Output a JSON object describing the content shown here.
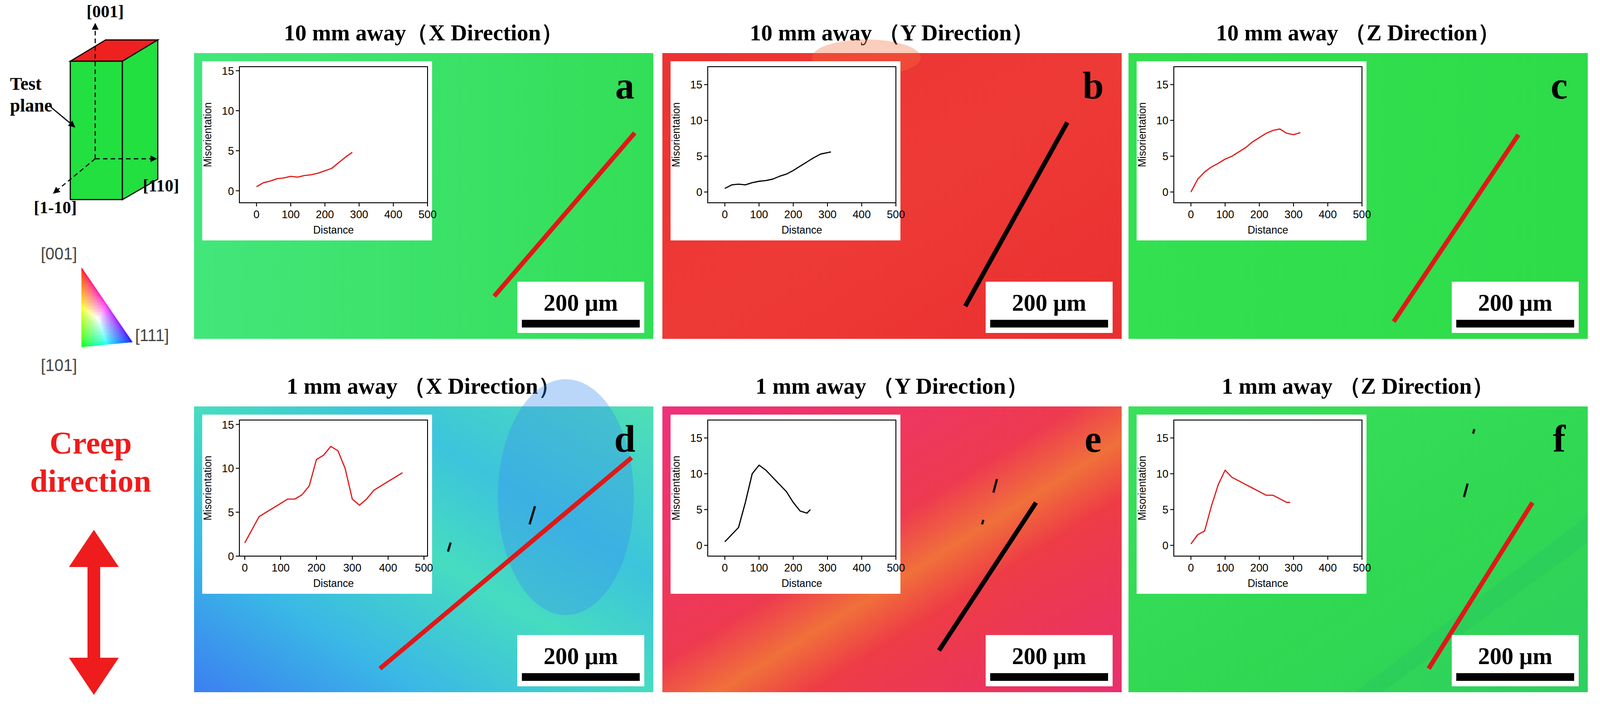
{
  "figure": {
    "orientation_diagram": {
      "axes": [
        "[001]",
        "[1-10]",
        "[110]"
      ],
      "test_plane": "Test plane"
    },
    "ipf_legend": {
      "corners": [
        "[001]",
        "[101]",
        "[111]"
      ]
    },
    "creep_label": "Creep direction"
  },
  "panels": [
    {
      "title": "10 mm away（X Direction）",
      "letter": "a",
      "scale_bar": "200 μm"
    },
    {
      "title": "10 mm away （Y Direction）",
      "letter": "b",
      "scale_bar": "200 μm"
    },
    {
      "title": "10 mm away （Z Direction）",
      "letter": "c",
      "scale_bar": "200 μm"
    },
    {
      "title": "1 mm away （X Direction）",
      "letter": "d",
      "scale_bar": "200 μm"
    },
    {
      "title": "1 mm away （Y Direction）",
      "letter": "e",
      "scale_bar": "200 μm"
    },
    {
      "title": "1 mm away （Z Direction）",
      "letter": "f",
      "scale_bar": "200 μm"
    }
  ],
  "chart_data": [
    {
      "type": "line",
      "xlabel": "Distance",
      "ylabel": "Misorientation",
      "color": "#e01818",
      "x": [
        0,
        20,
        40,
        60,
        80,
        100,
        120,
        140,
        160,
        180,
        200,
        220,
        240,
        260,
        280
      ],
      "values": [
        0.5,
        1.0,
        1.2,
        1.5,
        1.6,
        1.8,
        1.7,
        1.9,
        2.0,
        2.2,
        2.5,
        2.8,
        3.5,
        4.2,
        4.8
      ],
      "xlim": [
        -50,
        500
      ],
      "ylim": [
        -1.5,
        15.5
      ],
      "xticks": [
        0,
        100,
        200,
        300,
        400,
        500
      ],
      "yticks": [
        0,
        5,
        10,
        15
      ]
    },
    {
      "type": "line",
      "xlabel": "Distance",
      "ylabel": "Misorientation",
      "color": "#000000",
      "x": [
        0,
        20,
        40,
        60,
        80,
        100,
        120,
        140,
        160,
        180,
        200,
        220,
        240,
        260,
        280,
        300,
        310
      ],
      "values": [
        0.5,
        1.0,
        1.1,
        1.0,
        1.3,
        1.5,
        1.6,
        1.8,
        2.2,
        2.5,
        3.0,
        3.6,
        4.2,
        4.8,
        5.3,
        5.5,
        5.6
      ],
      "xlim": [
        -50,
        500
      ],
      "ylim": [
        -1.5,
        17.5
      ],
      "xticks": [
        0,
        100,
        200,
        300,
        400,
        500
      ],
      "yticks": [
        0,
        5,
        10,
        15
      ]
    },
    {
      "type": "line",
      "xlabel": "Distance",
      "ylabel": "Misorientation",
      "color": "#e01818",
      "x": [
        0,
        20,
        40,
        60,
        80,
        100,
        120,
        140,
        160,
        180,
        200,
        220,
        240,
        260,
        280,
        300,
        320
      ],
      "values": [
        0,
        1.8,
        2.8,
        3.5,
        4.0,
        4.6,
        5.0,
        5.6,
        6.2,
        7.0,
        7.6,
        8.2,
        8.6,
        8.8,
        8.2,
        8.0,
        8.3
      ],
      "xlim": [
        -50,
        500
      ],
      "ylim": [
        -1.5,
        17.5
      ],
      "xticks": [
        0,
        100,
        200,
        300,
        400,
        500
      ],
      "yticks": [
        0,
        5,
        10,
        15
      ]
    },
    {
      "type": "line",
      "xlabel": "Distance",
      "ylabel": "Misorientation",
      "color": "#e01818",
      "x": [
        0,
        20,
        40,
        60,
        80,
        100,
        120,
        140,
        160,
        180,
        200,
        220,
        240,
        260,
        280,
        300,
        320,
        340,
        360,
        380,
        400,
        420,
        440
      ],
      "values": [
        1.5,
        3.0,
        4.5,
        5.0,
        5.5,
        6.0,
        6.5,
        6.5,
        7.0,
        8.0,
        11.0,
        11.5,
        12.5,
        12.0,
        10.0,
        6.5,
        5.8,
        6.5,
        7.5,
        8.0,
        8.5,
        9.0,
        9.5
      ],
      "xlim": [
        -15,
        510
      ],
      "ylim": [
        0,
        15.5
      ],
      "xticks": [
        0,
        100,
        200,
        300,
        400,
        500
      ],
      "yticks": [
        0,
        5,
        10,
        15
      ]
    },
    {
      "type": "line",
      "xlabel": "Distance",
      "ylabel": "Misorientation",
      "color": "#000000",
      "x": [
        0,
        20,
        40,
        60,
        80,
        100,
        120,
        140,
        160,
        180,
        200,
        220,
        240,
        250
      ],
      "values": [
        0.5,
        1.5,
        2.5,
        6.0,
        10.0,
        11.2,
        10.5,
        9.5,
        8.5,
        7.5,
        6.0,
        4.8,
        4.5,
        5.0
      ],
      "xlim": [
        -50,
        500
      ],
      "ylim": [
        -1.5,
        17.5
      ],
      "xticks": [
        0,
        100,
        200,
        300,
        400,
        500
      ],
      "yticks": [
        0,
        5,
        10,
        15
      ]
    },
    {
      "type": "line",
      "xlabel": "Distance",
      "ylabel": "Misorientation",
      "color": "#e01818",
      "x": [
        0,
        20,
        40,
        60,
        80,
        100,
        120,
        140,
        160,
        180,
        200,
        220,
        240,
        260,
        280,
        290
      ],
      "values": [
        0.2,
        1.5,
        2.0,
        5.5,
        8.5,
        10.5,
        9.5,
        9.0,
        8.5,
        8.0,
        7.5,
        7.0,
        7.0,
        6.5,
        6.0,
        6.0
      ],
      "xlim": [
        -50,
        500
      ],
      "ylim": [
        -1.5,
        17.5
      ],
      "xticks": [
        0,
        100,
        200,
        300,
        400,
        500
      ],
      "yticks": [
        0,
        5,
        10,
        15
      ]
    }
  ]
}
